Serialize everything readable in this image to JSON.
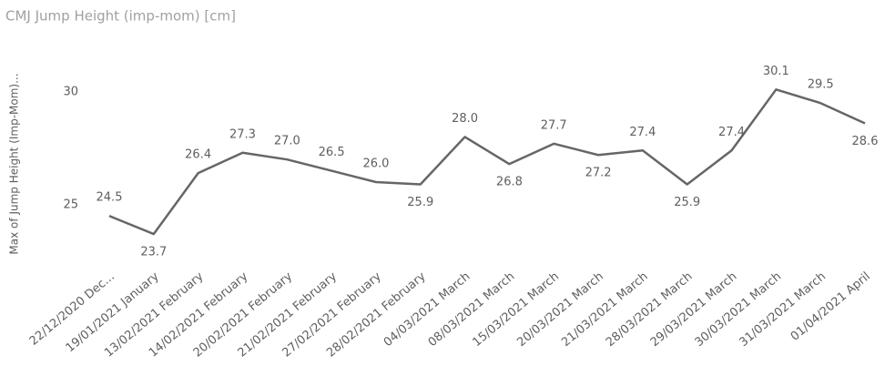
{
  "chart_data": {
    "type": "line",
    "title": "CMJ Jump Height (imp-mom) [cm]",
    "y_label": "Max of Jump Height (Imp-Mom)...",
    "categories": [
      "22/12/2020 Dec...",
      "19/01/2021 January",
      "13/02/2021 February",
      "14/02/2021 February",
      "20/02/2021 February",
      "21/02/2021 February",
      "27/02/2021 February",
      "28/02/2021 February",
      "04/03/2021 March",
      "08/03/2021 March",
      "15/03/2021 March",
      "20/03/2021 March",
      "21/03/2021 March",
      "28/03/2021 March",
      "29/03/2021 March",
      "30/03/2021 March",
      "31/03/2021 March",
      "01/04/2021 April"
    ],
    "values": [
      24.5,
      23.7,
      26.4,
      27.3,
      27.0,
      26.5,
      26.0,
      25.9,
      28.0,
      26.8,
      27.7,
      27.2,
      27.4,
      25.9,
      27.4,
      30.1,
      29.5,
      28.6
    ],
    "value_labels": [
      "24.5",
      "23.7",
      "26.4",
      "27.3",
      "27.0",
      "26.5",
      "26.0",
      "25.9",
      "28.0",
      "26.8",
      "27.7",
      "27.2",
      "27.4",
      "25.9",
      "27.4",
      "30.1",
      "29.5",
      "28.6"
    ],
    "color": "#666666",
    "ylim": [
      23.5,
      31
    ],
    "yticks": [
      25,
      30
    ],
    "grid": false
  }
}
